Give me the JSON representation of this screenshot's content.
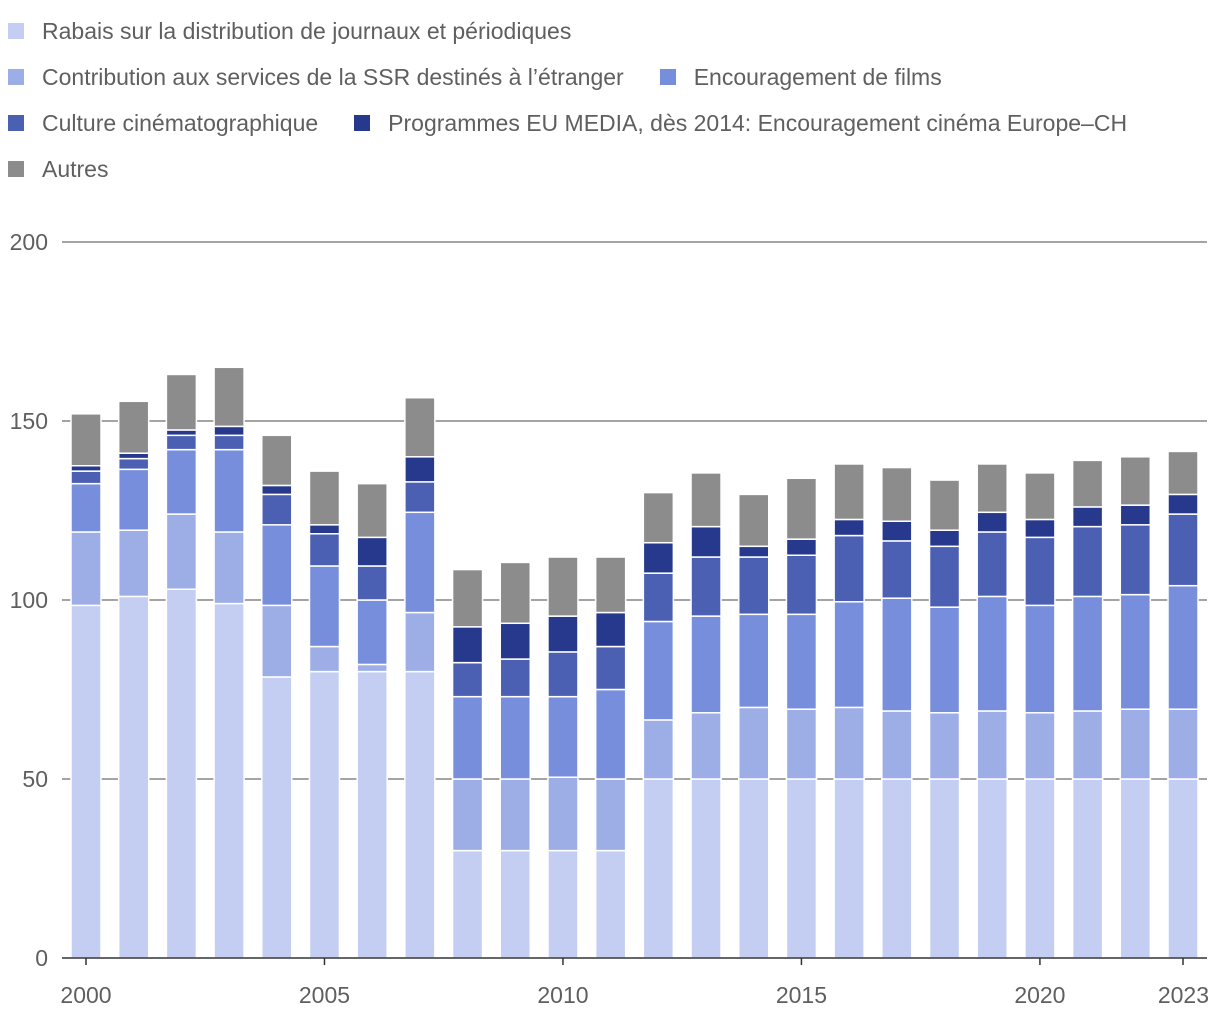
{
  "chart_data": {
    "type": "bar",
    "stacked": true,
    "title": "",
    "xlabel": "",
    "ylabel": "",
    "ylim": [
      0,
      200
    ],
    "y_ticks": [
      0,
      50,
      100,
      150,
      200
    ],
    "x_tick_labels": [
      "2000",
      "2005",
      "2010",
      "2015",
      "2020",
      "2023"
    ],
    "grid": true,
    "legend_position": "top",
    "categories": [
      "2000",
      "2001",
      "2002",
      "2003",
      "2004",
      "2005",
      "2006",
      "2007",
      "2008",
      "2009",
      "2010",
      "2011",
      "2012",
      "2013",
      "2014",
      "2015",
      "2016",
      "2017",
      "2018",
      "2019",
      "2020",
      "2021",
      "2022",
      "2023"
    ],
    "series": [
      {
        "name": "Rabais sur la distribution de journaux et périodiques",
        "color": "#c3cef2",
        "values": [
          98.5,
          101,
          103,
          99,
          78.5,
          80,
          80,
          80,
          30,
          30,
          30,
          30,
          50,
          50,
          50,
          50,
          50,
          50,
          50,
          50,
          50,
          50,
          50,
          50
        ]
      },
      {
        "name": "Contribution aux services de la SSR destinés à l’étranger",
        "color": "#9daee6",
        "values": [
          20.5,
          18.5,
          21,
          20,
          20,
          7,
          2,
          16.5,
          20,
          20,
          20.5,
          20,
          16.5,
          18.5,
          20,
          19.5,
          20,
          19,
          18.5,
          19,
          18.5,
          19,
          19.5,
          19.5
        ]
      },
      {
        "name": "Encouragement de films",
        "color": "#768edb",
        "values": [
          13.5,
          17,
          18,
          23,
          22.5,
          22.5,
          18,
          28,
          23,
          23,
          22.5,
          25,
          27.5,
          27,
          26,
          26.5,
          29.5,
          31.5,
          29.5,
          32,
          30,
          32,
          32,
          34.5
        ]
      },
      {
        "name": "Culture cinématographique",
        "color": "#4c60b3",
        "values": [
          3.5,
          3,
          4,
          4,
          8.5,
          9,
          9.5,
          8.5,
          9.5,
          10.5,
          12.5,
          12,
          13.5,
          16.5,
          16,
          16.5,
          18.5,
          16,
          17,
          18,
          19,
          19.5,
          19.5,
          20
        ]
      },
      {
        "name": "Programmes EU MEDIA, dès 2014: Encouragement cinéma Europe–CH",
        "color": "#26398c",
        "values": [
          1.5,
          1.5,
          1.5,
          2.5,
          2.5,
          2.5,
          8,
          7,
          10,
          10,
          10,
          9.5,
          8.5,
          8.5,
          3,
          4.5,
          4.5,
          5.5,
          4.5,
          5.5,
          5,
          5.5,
          5.5,
          5.5
        ]
      },
      {
        "name": "Autres",
        "color": "#8c8c8c",
        "values": [
          14.5,
          14.5,
          15.5,
          16.5,
          14,
          15,
          15,
          16.5,
          16,
          17,
          16.5,
          15.5,
          14,
          15,
          14.5,
          17,
          15.5,
          15,
          14,
          13.5,
          13,
          13,
          13.5,
          12
        ]
      }
    ]
  }
}
